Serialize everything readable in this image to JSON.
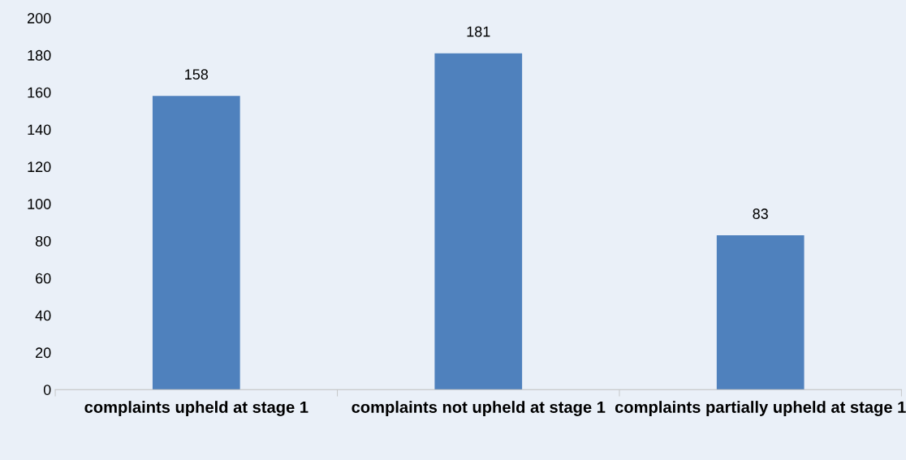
{
  "chart_data": {
    "type": "bar",
    "categories": [
      "complaints upheld at stage 1",
      "complaints not upheld at stage 1",
      "complaints partially upheld at stage 1"
    ],
    "values": [
      158,
      181,
      83
    ],
    "color": "#4f81bd",
    "ylim": [
      0,
      200
    ],
    "yticks": [
      0,
      20,
      40,
      60,
      80,
      100,
      120,
      140,
      160,
      180,
      200
    ],
    "data_labels": true,
    "grid": false,
    "legend": false
  }
}
